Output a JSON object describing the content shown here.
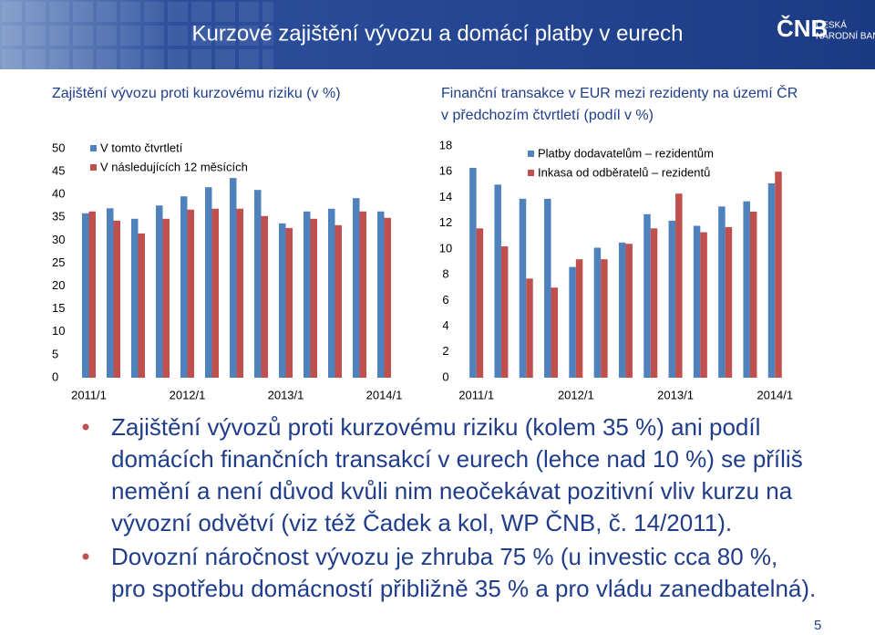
{
  "header": {
    "title": "Kurzové zajištění vývozu a domácí platby v eurech",
    "logo": "ČNB",
    "logo_line1": "ČESKÁ",
    "logo_line2": "NÁRODNÍ BANKA"
  },
  "chart_data": [
    {
      "type": "bar",
      "title": "Zajištění vývozu proti kurzovému riziku (v %)",
      "categories": [
        "2011/1",
        null,
        null,
        null,
        "2012/1",
        null,
        null,
        null,
        "2013/1",
        null,
        null,
        null,
        "2014/1"
      ],
      "series": [
        {
          "name": "V tomto čtvrtletí",
          "color": "#4f81bd",
          "values": [
            35.9,
            37,
            34.7,
            37.6,
            39.6,
            41.6,
            43.6,
            41,
            33.7,
            36.3,
            36.9,
            39.2,
            36.3
          ]
        },
        {
          "name": "V následujících 12 měsících",
          "color": "#c0504d",
          "values": [
            36.3,
            34.3,
            31.5,
            34.7,
            36.7,
            36.9,
            36.9,
            35.3,
            32.7,
            34.7,
            33.3,
            36.3,
            34.9
          ]
        }
      ],
      "ylim": [
        0,
        50
      ],
      "yticks": [
        0,
        5,
        10,
        15,
        20,
        25,
        30,
        35,
        40,
        45,
        50
      ],
      "grid": false,
      "legend": "top-left"
    },
    {
      "type": "bar",
      "title": [
        "Finanční transakce v EUR mezi rezidenty na území ČR",
        "v předchozím čtvrtletí (podíl v %)"
      ],
      "categories": [
        "2011/1",
        null,
        null,
        null,
        "2012/1",
        null,
        null,
        null,
        "2013/1",
        null,
        null,
        null,
        "2014/1"
      ],
      "series": [
        {
          "name": "Platby dodavatelům – rezidentům",
          "color": "#4f81bd",
          "values": [
            16.3,
            15.0,
            13.9,
            13.9,
            8.6,
            10.1,
            10.5,
            12.7,
            12.2,
            11.8,
            13.3,
            13.7,
            15.1
          ]
        },
        {
          "name": "Inkasa od odběratelů – rezidentů",
          "color": "#c0504d",
          "values": [
            11.6,
            10.2,
            7.7,
            7.0,
            9.2,
            9.2,
            10.4,
            11.6,
            14.3,
            11.3,
            11.7,
            12.9,
            16.0
          ]
        }
      ],
      "ylim": [
        0,
        18
      ],
      "yticks": [
        0,
        2,
        4,
        6,
        8,
        10,
        12,
        14,
        16,
        18
      ],
      "grid": false,
      "legend": "top-right"
    }
  ],
  "bullets": [
    [
      "Zajištění vývozů proti kurzovému riziku (kolem 35 %) ani podíl",
      "domácích finančních transakcí v eurech (lehce nad 10 %) se příliš",
      "nemění a není důvod kvůli nim neočekávat pozitivní vliv kurzu na",
      "vývozní odvětví (viz též Čadek a kol, WP ČNB, č. 14/2011)."
    ],
    [
      "Dovozní náročnost vývozu je zhruba 75 % (u investic cca 80 %,",
      "pro spotřebu domácností přibližně 35 % a pro vládu zanedbatelná)."
    ]
  ],
  "page_number": "5"
}
